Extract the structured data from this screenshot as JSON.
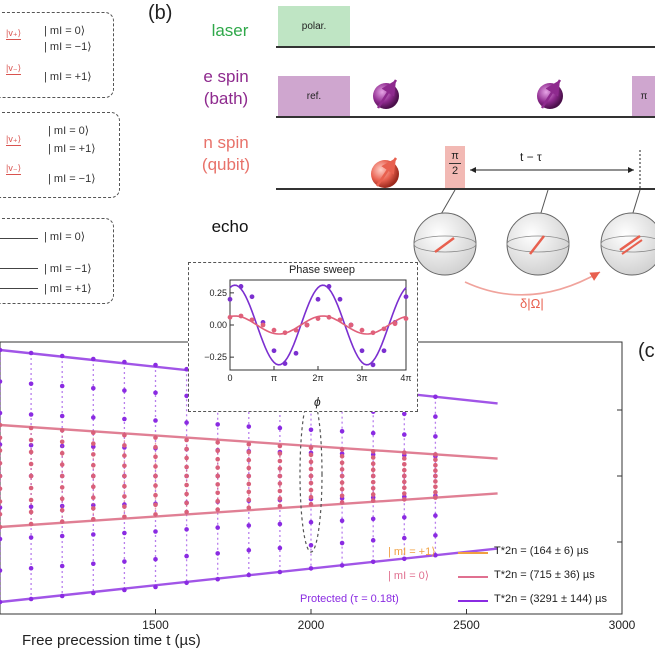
{
  "panel_b_label": "(b)",
  "panel_c_label": "(c",
  "sequence": {
    "laser_label": "laser",
    "e_spin_label": "e spin",
    "e_spin_sub": "(bath)",
    "n_spin_label": "n spin",
    "n_spin_sub": "(qubit)",
    "echo_label": "echo",
    "polar_label": "polar.",
    "ref_label": "ref.",
    "pi_label": "π",
    "pi2_num": "π",
    "pi2_den": "2",
    "delay_label": "t − τ",
    "phase_label": "δ|Ω|",
    "colors": {
      "laser": "#2fa84a",
      "e_spin": "#8e2a8e",
      "n_spin": "#e8726a",
      "pulse_laser": "#bfe5c4",
      "pulse_e": "#cfa6cf",
      "pulse_n": "#f2b9b4"
    }
  },
  "levels": {
    "box1": [
      {
        "ket": "|v₊⟩",
        "state": "| mI = 0⟩"
      },
      {
        "ket": "",
        "state": "| mI = −1⟩"
      },
      {
        "ket": "|v₋⟩",
        "state": "| mI = +1⟩"
      }
    ],
    "box2": [
      {
        "ket": "|v₊⟩",
        "state": "| mI = 0⟩"
      },
      {
        "ket": "",
        "state": "| mI = +1⟩"
      },
      {
        "ket": "|v₋⟩",
        "state": "| mI = −1⟩"
      }
    ],
    "box3": [
      {
        "ket": "",
        "state": "| mI = 0⟩"
      },
      {
        "ket": "",
        "state": "| mI = −1⟩"
      },
      {
        "ket": "",
        "state": "| mI = +1⟩"
      }
    ]
  },
  "chart_data": [
    {
      "type": "scatter",
      "title": "",
      "xlabel": "Free precession time t (µs)",
      "ylabel": "",
      "xlim": [
        1000,
        3000
      ],
      "x_ticks": [
        1500,
        2000,
        2500,
        3000
      ],
      "grid": false,
      "series": [
        {
          "name": "Protected (τ = 0.18t)",
          "color": "#8a2be2",
          "x": [
            1000,
            1100,
            1200,
            1300,
            1400,
            1500,
            1600,
            1700,
            1800,
            1900,
            2000,
            2100,
            2200,
            2300,
            2400
          ],
          "amplitude": [
            0.21,
            0.205,
            0.2,
            0.195,
            0.19,
            0.185,
            0.178,
            0.172,
            0.165,
            0.16,
            0.154,
            0.149,
            0.143,
            0.138,
            0.132
          ]
        },
        {
          "name": "| mI = 0⟩",
          "color": "#d9607a",
          "x": [
            1000,
            1100,
            1200,
            1300,
            1400,
            1500,
            1600,
            1700,
            1800,
            1900,
            2000,
            2100,
            2200,
            2300,
            2400
          ],
          "amplitude": [
            0.085,
            0.08,
            0.076,
            0.072,
            0.068,
            0.064,
            0.06,
            0.056,
            0.053,
            0.05,
            0.047,
            0.044,
            0.041,
            0.039,
            0.036
          ]
        }
      ],
      "legend": {
        "placement": "bottom-right",
        "entries": [
          {
            "label": "| mI = +1⟩",
            "fit": "T*2n = (164 ± 6) µs",
            "color": "#f0a040"
          },
          {
            "label": "| mI = 0⟩",
            "fit": "T*2n = (715 ± 36) µs",
            "color": "#e07090"
          },
          {
            "label": "Protected (τ = 0.18t)",
            "fit": "T*2n = (3291 ± 144) µs",
            "color": "#8a2be2"
          }
        ]
      }
    },
    {
      "type": "scatter",
      "title": "Phase sweep",
      "xlabel": "ϕ",
      "ylabel": "",
      "xlim": [
        0,
        4
      ],
      "ylim": [
        -0.35,
        0.35
      ],
      "x_tick_labels": [
        "0",
        "π",
        "2π",
        "3π",
        "4π"
      ],
      "y_ticks": [
        0.25,
        0.0,
        -0.25
      ],
      "y_tick_labels": [
        "0.25",
        "0.00",
        "−0.25"
      ],
      "x_unit": "π",
      "series": [
        {
          "name": "Protected",
          "color": "#7b2fd0",
          "x": [
            0,
            0.25,
            0.5,
            0.75,
            1.0,
            1.25,
            1.5,
            1.75,
            2.0,
            2.25,
            2.5,
            2.75,
            3.0,
            3.25,
            3.5,
            3.75,
            4.0
          ],
          "y": [
            0.2,
            0.3,
            0.22,
            0.02,
            -0.2,
            -0.3,
            -0.22,
            0.0,
            0.2,
            0.3,
            0.2,
            0.0,
            -0.2,
            -0.31,
            -0.2,
            0.02,
            0.22
          ]
        },
        {
          "name": "| mI = 0⟩",
          "color": "#e0607a",
          "x": [
            0,
            0.25,
            0.5,
            0.75,
            1.0,
            1.25,
            1.5,
            1.75,
            2.0,
            2.25,
            2.5,
            2.75,
            3.0,
            3.25,
            3.5,
            3.75,
            4.0
          ],
          "y": [
            0.06,
            0.07,
            0.04,
            0.0,
            -0.04,
            -0.06,
            -0.04,
            0.0,
            0.05,
            0.06,
            0.04,
            0.0,
            -0.04,
            -0.06,
            -0.03,
            0.01,
            0.05
          ]
        }
      ]
    }
  ]
}
